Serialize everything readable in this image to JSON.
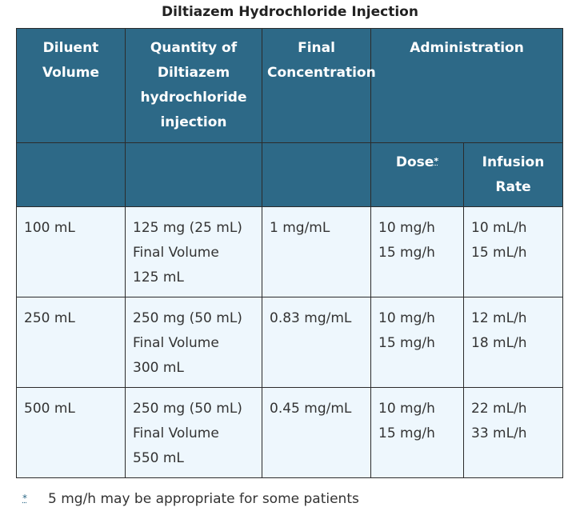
{
  "caption": "Diltiazem Hydrochloride Injection",
  "header": {
    "diluent_volume": "Diluent Volume",
    "quantity": "Quantity of Diltiazem hydrochloride injection",
    "final_concentration": "Final Concentration",
    "administration": "Administration",
    "dose": "Dose",
    "dose_marker": "*",
    "infusion_rate": "Infusion Rate"
  },
  "rows": [
    {
      "diluent": "100 mL",
      "quantity": "125 mg (25 mL)",
      "final_volume_label": "Final Volume",
      "final_volume": "125 mL",
      "concentration": "1 mg/mL",
      "dose_1": "10 mg/h",
      "dose_2": "15 mg/h",
      "rate_1": "10 mL/h",
      "rate_2": "15 mL/h"
    },
    {
      "diluent": "250 mL",
      "quantity": "250 mg (50 mL)",
      "final_volume_label": "Final Volume",
      "final_volume": "300 mL",
      "concentration": "0.83 mg/mL",
      "dose_1": "10 mg/h",
      "dose_2": "15 mg/h",
      "rate_1": "12 mL/h",
      "rate_2": "18 mL/h"
    },
    {
      "diluent": "500 mL",
      "quantity": "250 mg (50 mL)",
      "final_volume_label": "Final Volume",
      "final_volume": "550 mL",
      "concentration": "0.45 mg/mL",
      "dose_1": "10 mg/h",
      "dose_2": "15 mg/h",
      "rate_1": "22 mL/h",
      "rate_2": "33 mL/h"
    }
  ],
  "footnote": {
    "marker": "*",
    "text": "5 mg/h may be appropriate for some patients"
  },
  "colors": {
    "header_bg": "#2d6987",
    "cell_bg": "#eef7fd",
    "border": "#2b2b2b"
  }
}
